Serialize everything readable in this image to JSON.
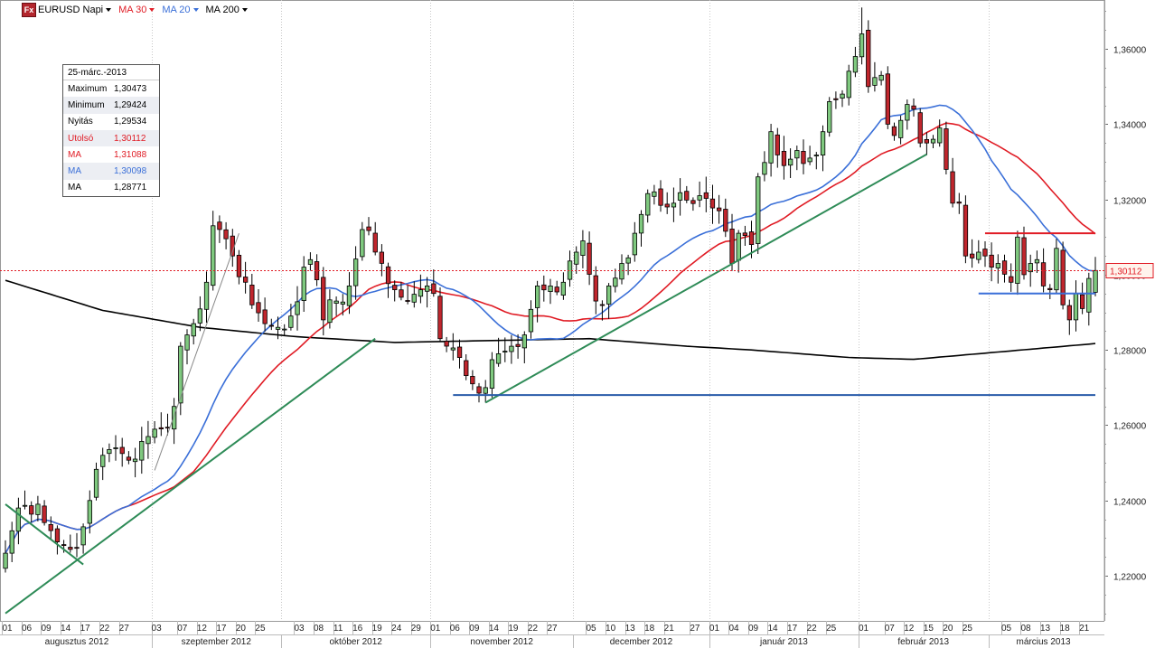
{
  "toolbar": {
    "icon_label": "Fx",
    "symbol": "EURUSD Napi",
    "ma1": {
      "label": "MA 30",
      "color": "#e01b24"
    },
    "ma2": {
      "label": "MA 20",
      "color": "#3a6fd8"
    },
    "ma3": {
      "label": "MA 200",
      "color": "#000000"
    }
  },
  "info_box": {
    "date": "25-márc.-2013",
    "rows": [
      {
        "key": "Maximum",
        "value": "1,30473",
        "color": "#000000"
      },
      {
        "key": "Minimum",
        "value": "1,29424",
        "color": "#000000"
      },
      {
        "key": "Nyitás",
        "value": "1,29534",
        "color": "#000000"
      },
      {
        "key": "Utolsó",
        "value": "1,30112",
        "color": "#e01b24"
      },
      {
        "key": "MA",
        "value": "1,31088",
        "color": "#e01b24"
      },
      {
        "key": "MA",
        "value": "1,30098",
        "color": "#3a6fd8"
      },
      {
        "key": "MA",
        "value": "1,28771",
        "color": "#000000"
      }
    ]
  },
  "chart_data": {
    "type": "candlestick",
    "instrument": "EURUSD",
    "timeframe": "Napi",
    "ylim": [
      1.208,
      1.373
    ],
    "y_ticks": [
      {
        "value": 1.22,
        "label": "1,22000"
      },
      {
        "value": 1.24,
        "label": "1,24000"
      },
      {
        "value": 1.26,
        "label": "1,26000"
      },
      {
        "value": 1.28,
        "label": "1,28000"
      },
      {
        "value": 1.3,
        "label": "1,30000"
      },
      {
        "value": 1.32,
        "label": "1,32000"
      },
      {
        "value": 1.34,
        "label": "1,34000"
      },
      {
        "value": 1.36,
        "label": "1,36000"
      }
    ],
    "last_price": {
      "value": 1.30112,
      "label": "1,30112"
    },
    "x_day_labels": [
      "01",
      "06",
      "09",
      "14",
      "17",
      "22",
      "27",
      "03",
      "07",
      "12",
      "17",
      "20",
      "25",
      "03",
      "08",
      "11",
      "16",
      "19",
      "24",
      "29",
      "01",
      "06",
      "09",
      "14",
      "19",
      "22",
      "27",
      "05",
      "10",
      "13",
      "18",
      "21",
      "27",
      "01",
      "04",
      "09",
      "14",
      "17",
      "22",
      "25",
      "01",
      "07",
      "12",
      "15",
      "20",
      "25",
      "05",
      "08",
      "13",
      "18",
      "21"
    ],
    "x_month_labels": [
      "augusztus 2012",
      "szeptember 2012",
      "október 2012",
      "november 2012",
      "december 2012",
      "január 2013",
      "február 2013",
      "március 2013"
    ],
    "candle_colors": {
      "up": "#7fc97f",
      "down": "#c0262d"
    },
    "key_prices": [
      {
        "date": "2012-08-01",
        "approx_close": 1.225
      },
      {
        "date": "2012-09-14",
        "approx_high": 1.317
      },
      {
        "date": "2012-10-17",
        "approx_high": 1.314
      },
      {
        "date": "2012-11-13",
        "approx_low": 1.266
      },
      {
        "date": "2013-02-01",
        "approx_high": 1.371
      },
      {
        "date": "2013-03-19",
        "approx_low": 1.284
      },
      {
        "date": "2013-03-25",
        "open": 1.29534,
        "high": 1.30473,
        "low": 1.29424,
        "close": 1.30112
      }
    ],
    "ma_last_values": {
      "MA 30": 1.31088,
      "MA 20": 1.30098,
      "MA 200": 1.28771
    },
    "drawn_lines": [
      {
        "color": "#2e8b57",
        "from": {
          "date": "2012-08-01",
          "value": 1.21
        },
        "to": {
          "date": "2012-10-19",
          "value": 1.283
        }
      },
      {
        "color": "#2e8b57",
        "from": {
          "date": "2012-11-13",
          "value": 1.266
        },
        "to": {
          "date": "2013-02-15",
          "value": 1.332
        }
      },
      {
        "color": "#2e8b57",
        "from": {
          "date": "2012-08-01",
          "value": 1.239
        },
        "to": {
          "date": "2012-08-17",
          "value": 1.223
        }
      },
      {
        "color": "#888888",
        "from": {
          "date": "2012-09-03",
          "value": 1.248
        },
        "to": {
          "date": "2012-09-20",
          "value": 1.311
        }
      },
      {
        "color": "#2a5caa",
        "horizontal": 1.268,
        "from": "2012-11-06",
        "to": "2013-03-25"
      },
      {
        "color": "#3a6fd8",
        "horizontal": 1.295,
        "from": "2013-02-27",
        "to": "2013-03-25"
      },
      {
        "color": "#e01b24",
        "horizontal": 1.311,
        "from": "2013-02-28",
        "to": "2013-03-25"
      }
    ]
  }
}
